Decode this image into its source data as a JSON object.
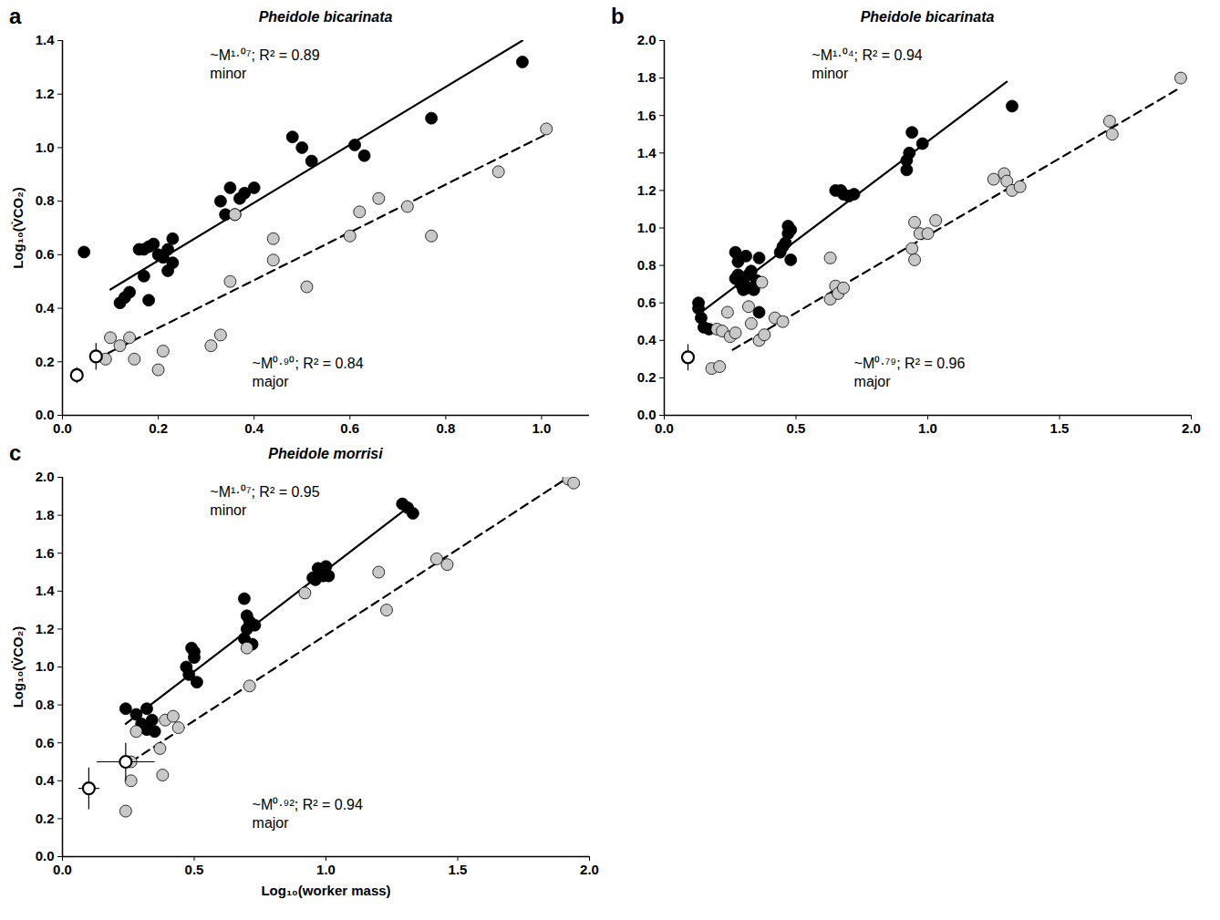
{
  "chart_data": [
    {
      "type": "scatter",
      "panel": "a",
      "title": "Pheidole bicarinata",
      "ylabel": "Log₁₀(V̇CO₂)",
      "xlim": [
        0,
        1.1
      ],
      "ylim": [
        0,
        1.4
      ],
      "xticks": [
        {
          "value": 0,
          "label": "0.0"
        },
        0.2,
        0.4,
        0.6,
        0.8,
        {
          "value": 1,
          "label": "1.0"
        }
      ],
      "yticks": [
        {
          "value": 0,
          "label": "0.0"
        },
        0.2,
        0.4,
        0.6,
        0.8,
        {
          "value": 1,
          "label": "1.0"
        },
        1.2,
        1.4
      ],
      "series": [
        {
          "name": "minor",
          "color": "#000000",
          "marker": "circle",
          "line_style": "solid",
          "annotation": "~M¹·⁰⁷; R² = 0.89",
          "x": [
            0.045,
            0.12,
            0.13,
            0.14,
            0.16,
            0.17,
            0.17,
            0.18,
            0.18,
            0.19,
            0.2,
            0.21,
            0.22,
            0.22,
            0.23,
            0.23,
            0.33,
            0.34,
            0.35,
            0.36,
            0.37,
            0.38,
            0.4,
            0.48,
            0.5,
            0.52,
            0.61,
            0.63,
            0.77,
            0.96
          ],
          "values": [
            0.61,
            0.42,
            0.44,
            0.46,
            0.62,
            0.52,
            0.62,
            0.43,
            0.63,
            0.64,
            0.6,
            0.59,
            0.62,
            0.54,
            0.57,
            0.66,
            0.8,
            0.75,
            0.85,
            0.75,
            0.81,
            0.83,
            0.85,
            1.04,
            1.0,
            0.95,
            1.01,
            0.97,
            1.11,
            1.32
          ],
          "fit": {
            "x": [
              0.1,
              0.96
            ],
            "values": [
              0.47,
              1.4
            ]
          }
        },
        {
          "name": "major",
          "color": "#c8c8c8",
          "marker": "circle",
          "line_style": "dashed",
          "annotation": "~M⁰·⁹⁰; R² = 0.84",
          "x": [
            0.09,
            0.1,
            0.12,
            0.14,
            0.15,
            0.2,
            0.21,
            0.31,
            0.33,
            0.35,
            0.36,
            0.44,
            0.44,
            0.51,
            0.6,
            0.62,
            0.66,
            0.72,
            0.77,
            0.91,
            1.01
          ],
          "values": [
            0.21,
            0.29,
            0.26,
            0.29,
            0.21,
            0.17,
            0.24,
            0.26,
            0.3,
            0.5,
            0.75,
            0.66,
            0.58,
            0.48,
            0.67,
            0.76,
            0.81,
            0.78,
            0.67,
            0.91,
            1.07
          ],
          "fit": {
            "x": [
              0.07,
              1.01
            ],
            "values": [
              0.21,
              1.05
            ]
          }
        },
        {
          "color": "#ffffff",
          "marker": "circle",
          "x": [
            0.03,
            0.07
          ],
          "values": [
            0.15,
            0.22
          ],
          "x_error": [
            null,
            null
          ],
          "y_error": [
            0.03,
            0.05
          ]
        }
      ]
    },
    {
      "type": "scatter",
      "panel": "b",
      "title": "Pheidole bicarinata",
      "xlim": [
        0,
        2
      ],
      "ylim": [
        0,
        2
      ],
      "xticks": [
        {
          "value": 0,
          "label": "0.0"
        },
        0.5,
        {
          "value": 1,
          "label": "1.0"
        },
        1.5,
        {
          "value": 2,
          "label": "2.0"
        }
      ],
      "yticks": [
        {
          "value": 0,
          "label": "0.0"
        },
        0.2,
        0.4,
        0.6,
        0.8,
        {
          "value": 1,
          "label": "1.0"
        },
        1.2,
        1.4,
        1.6,
        1.8,
        {
          "value": 2,
          "label": "2.0"
        }
      ],
      "series": [
        {
          "name": "minor",
          "color": "#000000",
          "marker": "circle",
          "line_style": "solid",
          "annotation": "~M¹·⁰⁴; R² = 0.94",
          "x": [
            0.13,
            0.13,
            0.14,
            0.15,
            0.17,
            0.27,
            0.27,
            0.28,
            0.28,
            0.29,
            0.3,
            0.3,
            0.31,
            0.32,
            0.32,
            0.33,
            0.34,
            0.35,
            0.36,
            0.36,
            0.44,
            0.45,
            0.46,
            0.47,
            0.47,
            0.48,
            0.48,
            0.65,
            0.67,
            0.68,
            0.7,
            0.72,
            0.92,
            0.92,
            0.93,
            0.94,
            0.98,
            1.32
          ],
          "values": [
            0.6,
            0.57,
            0.52,
            0.47,
            0.46,
            0.73,
            0.87,
            0.82,
            0.75,
            0.7,
            0.72,
            0.67,
            0.85,
            0.75,
            0.68,
            0.77,
            0.67,
            0.72,
            0.55,
            0.84,
            0.87,
            0.9,
            0.92,
            0.97,
            1.01,
            0.83,
            0.99,
            1.2,
            1.2,
            1.18,
            1.17,
            1.18,
            1.31,
            1.36,
            1.4,
            1.51,
            1.45,
            1.65
          ],
          "fit": {
            "x": [
              0.13,
              1.3
            ],
            "values": [
              0.54,
              1.78
            ]
          }
        },
        {
          "name": "major",
          "color": "#c8c8c8",
          "marker": "circle",
          "line_style": "dashed",
          "annotation": "~M⁰·⁷⁹; R² = 0.96",
          "x": [
            0.18,
            0.21,
            0.2,
            0.22,
            0.25,
            0.27,
            0.24,
            0.32,
            0.33,
            0.36,
            0.37,
            0.38,
            0.42,
            0.45,
            0.63,
            0.63,
            0.65,
            0.66,
            0.68,
            0.94,
            0.95,
            0.95,
            0.97,
            1.0,
            1.03,
            1.25,
            1.29,
            1.3,
            1.32,
            1.35,
            1.69,
            1.7,
            1.96
          ],
          "values": [
            0.25,
            0.26,
            0.46,
            0.45,
            0.42,
            0.44,
            0.55,
            0.58,
            0.49,
            0.4,
            0.71,
            0.43,
            0.52,
            0.5,
            0.84,
            0.62,
            0.69,
            0.65,
            0.68,
            0.89,
            1.03,
            0.83,
            0.97,
            0.97,
            1.04,
            1.26,
            1.29,
            1.25,
            1.2,
            1.22,
            1.57,
            1.5,
            1.8
          ],
          "fit": {
            "x": [
              0.26,
              1.96
            ],
            "values": [
              0.35,
              1.75
            ]
          }
        },
        {
          "color": "#ffffff",
          "marker": "circle",
          "x": [
            0.09
          ],
          "values": [
            0.31
          ],
          "x_error": [
            null
          ],
          "y_error": [
            0.07
          ]
        }
      ]
    },
    {
      "type": "scatter",
      "panel": "c",
      "title": "Pheidole morrisi",
      "ylabel": "Log₁₀(V̇CO₂)",
      "xlabel": "Log₁₀(worker mass)",
      "xlim": [
        0,
        2
      ],
      "ylim": [
        0,
        2
      ],
      "xticks": [
        {
          "value": 0,
          "label": "0.0"
        },
        0.5,
        {
          "value": 1,
          "label": "1.0"
        },
        1.5,
        {
          "value": 2,
          "label": "2.0"
        }
      ],
      "yticks": [
        {
          "value": 0,
          "label": "0.0"
        },
        0.2,
        0.4,
        0.6,
        0.8,
        {
          "value": 1,
          "label": "1.0"
        },
        1.2,
        1.4,
        1.6,
        1.8,
        {
          "value": 2,
          "label": "2.0"
        }
      ],
      "series": [
        {
          "name": "minor",
          "color": "#000000",
          "marker": "circle",
          "line_style": "solid",
          "annotation": "~M¹·⁰⁷; R² = 0.95",
          "x": [
            0.24,
            0.28,
            0.3,
            0.32,
            0.32,
            0.34,
            0.35,
            0.47,
            0.48,
            0.49,
            0.5,
            0.51,
            0.5,
            0.69,
            0.69,
            0.7,
            0.7,
            0.71,
            0.72,
            0.73,
            0.95,
            0.96,
            0.97,
            0.98,
            0.99,
            1.0,
            1.01,
            1.29,
            1.31,
            1.33
          ],
          "values": [
            0.78,
            0.75,
            0.7,
            0.78,
            0.67,
            0.72,
            0.66,
            1.0,
            0.96,
            1.1,
            1.05,
            0.92,
            1.08,
            1.36,
            1.15,
            1.2,
            1.27,
            1.24,
            1.12,
            1.22,
            1.47,
            1.46,
            1.52,
            1.5,
            1.48,
            1.53,
            1.48,
            1.86,
            1.84,
            1.81
          ],
          "fit": {
            "x": [
              0.24,
              1.32
            ],
            "values": [
              0.7,
              1.85
            ]
          }
        },
        {
          "name": "major",
          "color": "#c8c8c8",
          "marker": "circle",
          "line_style": "dashed",
          "annotation": "~M⁰·⁹²; R² = 0.94",
          "x": [
            0.24,
            0.26,
            0.26,
            0.28,
            0.37,
            0.38,
            0.39,
            0.42,
            0.44,
            0.71,
            0.7,
            0.92,
            1.2,
            1.23,
            1.42,
            1.46,
            1.92,
            1.94
          ],
          "values": [
            0.24,
            0.5,
            0.4,
            0.66,
            0.57,
            0.43,
            0.72,
            0.74,
            0.68,
            0.9,
            1.1,
            1.39,
            1.5,
            1.3,
            1.57,
            1.54,
            1.99,
            1.97
          ],
          "fit": {
            "x": [
              0.26,
              1.92
            ],
            "values": [
              0.5,
              2.0
            ]
          }
        },
        {
          "color": "#ffffff",
          "marker": "circle",
          "x": [
            0.1,
            0.24
          ],
          "values": [
            0.36,
            0.5
          ],
          "x_error": [
            0.04,
            0.11
          ],
          "y_error": [
            0.11,
            0.1
          ]
        }
      ]
    }
  ]
}
